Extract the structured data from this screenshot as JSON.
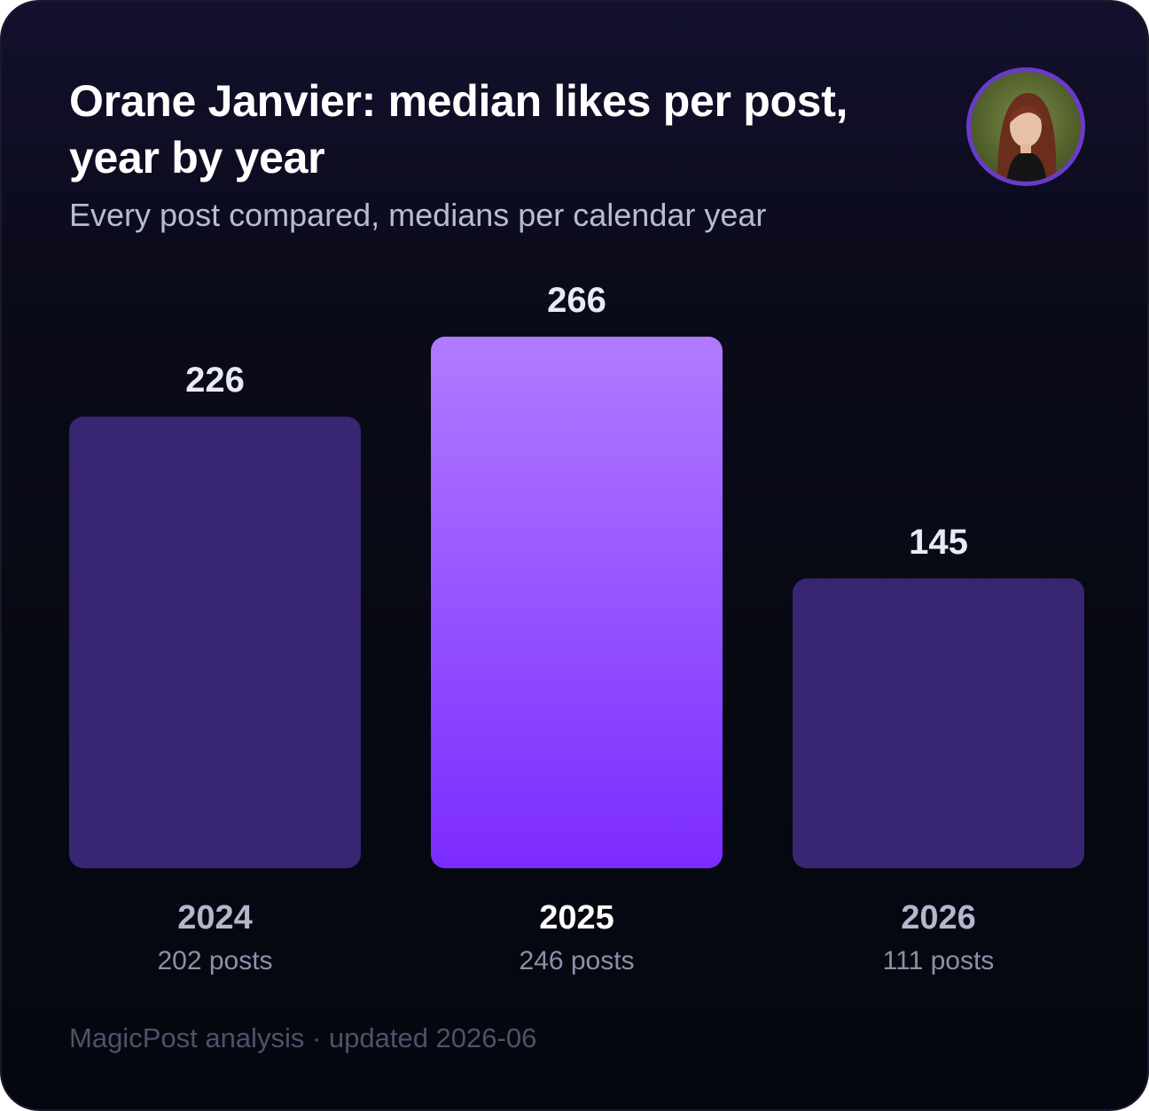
{
  "header": {
    "title": "Orane Janvier: median likes per post, year by year",
    "subtitle": "Every post compared, medians per calendar year"
  },
  "avatar": {
    "icon": "profile-photo"
  },
  "chart_data": {
    "type": "bar",
    "categories": [
      "2024",
      "2025",
      "2026"
    ],
    "values": [
      226,
      266,
      145
    ],
    "post_counts": [
      "202 posts",
      "246 posts",
      "111 posts"
    ],
    "highlight_index": 1,
    "colors": {
      "bar": "#382672",
      "highlight_top": "#b07bff",
      "highlight_bottom": "#7c2bff",
      "label": "#e9eaf6",
      "category": "#b4b7cc",
      "category_highlight": "#ffffff",
      "sublabel": "#8d90a8"
    }
  },
  "footer": {
    "text": "MagicPost analysis · updated 2026-06"
  }
}
